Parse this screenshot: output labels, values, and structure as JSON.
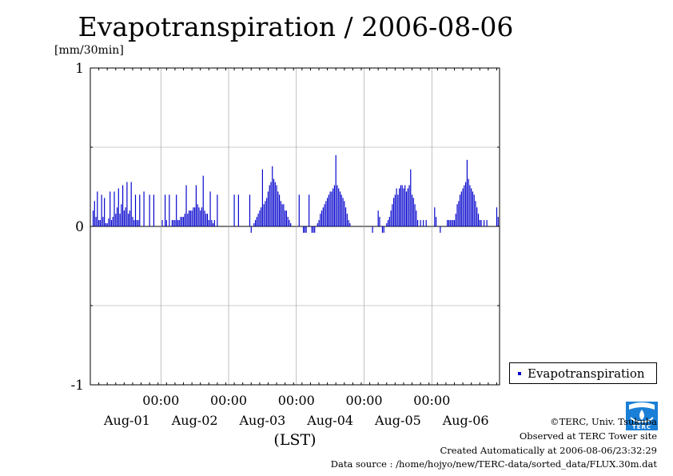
{
  "title": "Evapotranspiration / 2006-08-06",
  "unit": "[mm/30min]",
  "legend": {
    "label": "Evapotranspiration",
    "color": "#0000cc"
  },
  "credits": {
    "org": "©TERC, Univ. Tsukuba",
    "observed": "Observed at TERC Tower site",
    "created": "Created Automatically at 2006-08-06/23:32:29",
    "source": "Data source : /home/hojyo/new/TERC-data/sorted_data/FLUX.30m.dat"
  },
  "logo_text": "TERC",
  "chart_data": {
    "type": "bar",
    "title": "Evapotranspiration / 2006-08-06",
    "ylabel": "[mm/30min]",
    "xlabel": "(LST)",
    "ylim": [
      -1,
      1
    ],
    "yticks": [
      "1",
      "0",
      "-1"
    ],
    "x_range": [
      "2006-07-31T23:00",
      "2006-08-07T00:00"
    ],
    "x_tick_labels": [
      "00:00",
      "00:00",
      "00:00",
      "00:00",
      "00:00"
    ],
    "x_tick_times": [
      "2006-08-02T00:00",
      "2006-08-03T00:00",
      "2006-08-04T00:00",
      "2006-08-05T00:00",
      "2006-08-06T00:00"
    ],
    "day_labels": [
      "Aug-01",
      "Aug-02",
      "Aug-03",
      "Aug-04",
      "Aug-05",
      "Aug-06"
    ],
    "grid": true,
    "legend_position": "bottom-right",
    "series": [
      {
        "name": "Evapotranspiration",
        "color": "#0000cc",
        "start": "2006-08-01T00:00",
        "interval_minutes": 30,
        "values": [
          0.1,
          0.16,
          0.06,
          0.22,
          0.04,
          0.04,
          0.2,
          0.06,
          0.18,
          0.02,
          0.02,
          0.05,
          0.22,
          0.04,
          0.06,
          0.22,
          0.08,
          0.12,
          0.24,
          0.08,
          0.14,
          0.26,
          0.1,
          0.12,
          0.28,
          0.08,
          0.1,
          0.28,
          0.06,
          0.04,
          0.2,
          0.04,
          0.04,
          0.2,
          0.0,
          0.0,
          0.22,
          0.0,
          0.0,
          0.0,
          0.2,
          0.0,
          0.0,
          0.2,
          0.0,
          0.0,
          0.0,
          0.0,
          0.0,
          0.04,
          0.0,
          0.2,
          0.04,
          0.0,
          0.2,
          0.0,
          0.04,
          0.04,
          0.04,
          0.2,
          0.04,
          0.04,
          0.06,
          0.06,
          0.06,
          0.08,
          0.26,
          0.08,
          0.1,
          0.1,
          0.1,
          0.12,
          0.12,
          0.26,
          0.14,
          0.12,
          0.1,
          0.12,
          0.32,
          0.1,
          0.08,
          0.08,
          0.04,
          0.22,
          0.04,
          0.02,
          0.04,
          0.0,
          0.2,
          0.0,
          0.0,
          0.0,
          0.0,
          0.0,
          0.0,
          0.0,
          0.0,
          0.0,
          0.0,
          0.0,
          0.2,
          0.0,
          0.0,
          0.2,
          0.0,
          0.0,
          0.0,
          0.0,
          0.0,
          0.0,
          0.0,
          0.2,
          -0.04,
          0.0,
          0.02,
          0.04,
          0.06,
          0.08,
          0.1,
          0.12,
          0.36,
          0.14,
          0.16,
          0.18,
          0.22,
          0.26,
          0.28,
          0.38,
          0.3,
          0.28,
          0.26,
          0.22,
          0.2,
          0.16,
          0.14,
          0.14,
          0.1,
          0.1,
          0.06,
          0.04,
          0.02,
          0.0,
          0.0,
          0.0,
          0.0,
          0.0,
          0.2,
          0.0,
          0.0,
          -0.04,
          -0.04,
          -0.04,
          0.0,
          0.2,
          0.0,
          -0.04,
          -0.04,
          -0.04,
          0.0,
          0.02,
          0.04,
          0.08,
          0.1,
          0.12,
          0.14,
          0.16,
          0.18,
          0.2,
          0.22,
          0.22,
          0.24,
          0.26,
          0.45,
          0.26,
          0.24,
          0.22,
          0.2,
          0.18,
          0.16,
          0.12,
          0.08,
          0.04,
          0.02,
          0.0,
          0.0,
          0.0,
          0.0,
          0.0,
          0.0,
          0.0,
          0.0,
          0.0,
          0.0,
          0.0,
          0.0,
          0.0,
          0.0,
          0.0,
          -0.04,
          0.0,
          0.0,
          0.0,
          0.1,
          0.06,
          0.0,
          -0.04,
          -0.04,
          0.0,
          0.02,
          0.04,
          0.06,
          0.1,
          0.14,
          0.18,
          0.2,
          0.24,
          0.2,
          0.24,
          0.26,
          0.26,
          0.24,
          0.26,
          0.22,
          0.24,
          0.26,
          0.36,
          0.2,
          0.18,
          0.14,
          0.1,
          0.04,
          0.0,
          0.04,
          0.0,
          0.04,
          0.0,
          0.04,
          0.0,
          0.0,
          0.0,
          0.0,
          0.0,
          0.12,
          0.06,
          0.0,
          0.0,
          -0.04,
          0.0,
          0.0,
          0.0,
          0.0,
          0.04,
          0.04,
          0.04,
          0.04,
          0.04,
          0.04,
          0.08,
          0.14,
          0.16,
          0.2,
          0.22,
          0.24,
          0.26,
          0.28,
          0.42,
          0.3,
          0.26,
          0.24,
          0.22,
          0.2,
          0.16,
          0.12,
          0.08,
          0.04,
          0.04,
          0.0,
          0.04,
          0.0,
          0.04,
          0.0,
          0.0,
          0.0,
          0.0,
          0.0,
          0.0,
          0.12,
          0.06
        ]
      }
    ]
  }
}
